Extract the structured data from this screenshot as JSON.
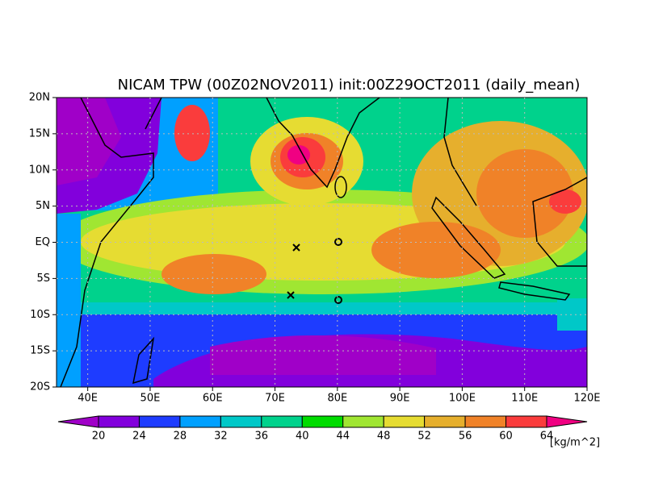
{
  "title": "NICAM TPW (00Z02NOV2011) init:00Z29OCT2011 (daily_mean)",
  "map": {
    "lat_labels": [
      "20N",
      "15N",
      "10N",
      "5N",
      "EQ",
      "5S",
      "10S",
      "15S",
      "20S"
    ],
    "lon_labels": [
      "40E",
      "50E",
      "60E",
      "70E",
      "80E",
      "90E",
      "100E",
      "110E",
      "120E"
    ]
  },
  "colorbar": {
    "levels": [
      20,
      24,
      28,
      32,
      36,
      40,
      44,
      48,
      52,
      56,
      60,
      64
    ],
    "colors": [
      "#a000c8",
      "#8200dc",
      "#1e3cff",
      "#00a0ff",
      "#00c8c8",
      "#00d28c",
      "#00dc00",
      "#a0e632",
      "#e6dc32",
      "#e6af2d",
      "#f08228",
      "#fa3c3c",
      "#f00082"
    ],
    "unit": "[kg/m^2]"
  }
}
